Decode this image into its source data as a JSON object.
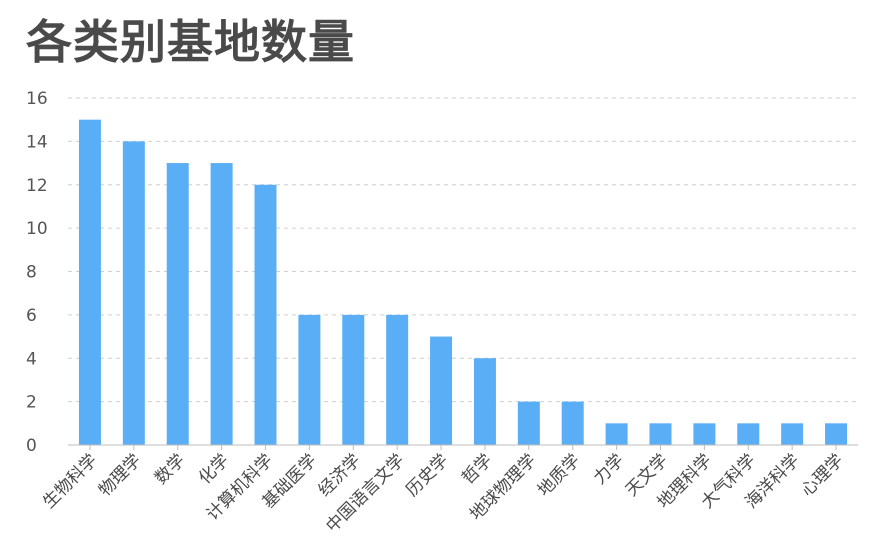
{
  "chart_data": {
    "type": "bar",
    "title": "各类别基地数量",
    "xlabel": "",
    "ylabel": "",
    "ylim": [
      0,
      16
    ],
    "yticks": [
      0,
      2,
      4,
      6,
      8,
      10,
      12,
      14,
      16
    ],
    "grid": true,
    "bar_color": "#5aaef5",
    "categories": [
      "生物科学",
      "物理学",
      "数学",
      "化学",
      "计算机科学",
      "基础医学",
      "经济学",
      "中国语言文学",
      "历史学",
      "哲学",
      "地球物理学",
      "地质学",
      "力学",
      "天文学",
      "地理科学",
      "大气科学",
      "海洋科学",
      "心理学"
    ],
    "values": [
      15,
      14,
      13,
      13,
      12,
      6,
      6,
      6,
      5,
      4,
      2,
      2,
      1,
      1,
      1,
      1,
      1,
      1
    ]
  }
}
